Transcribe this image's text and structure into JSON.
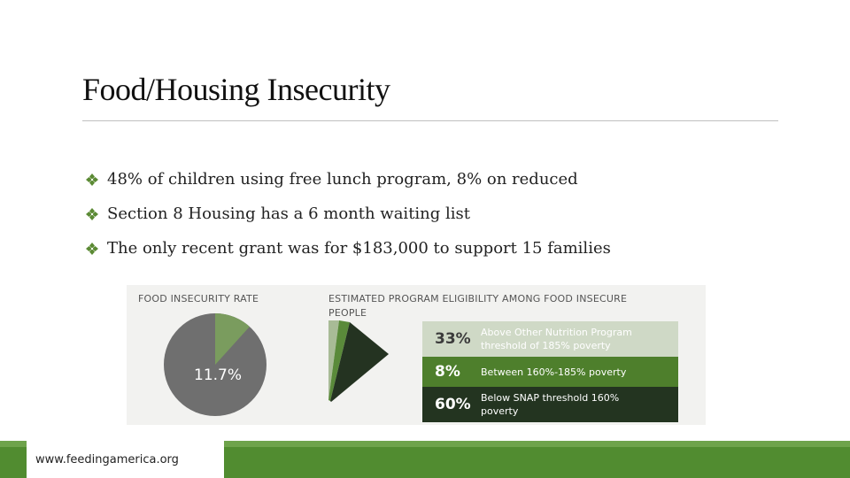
{
  "slide": {
    "title": "Food/Housing Insecurity",
    "bullets": [
      "48% of children using free lunch program, 8% on reduced",
      "Section 8 Housing has a 6 month waiting list",
      "The only recent grant was for $183,000 to support 15 families"
    ],
    "source": "www.feedingamerica.org"
  },
  "infographic": {
    "left_title": "FOOD INSECURITY RATE",
    "left_value": "11.7%",
    "left_fraction": 0.117,
    "right_title_line1": "ESTIMATED PROGRAM ELIGIBILITY AMONG FOOD INSECURE",
    "right_title_line2": "PEOPLE",
    "rows": [
      {
        "pct": "33%",
        "desc_line1": "Above Other Nutrition Program",
        "desc_line2": "threshold of 185% poverty",
        "bg": "#cfd9c6",
        "fg": "#3c3c3c",
        "desc_fg": "#ffffff"
      },
      {
        "pct": "8%",
        "desc_line1": "Between 160%-185% poverty",
        "desc_line2": "",
        "bg": "#4e7f2c",
        "fg": "#ffffff",
        "desc_fg": "#ffffff"
      },
      {
        "pct": "60%",
        "desc_line1": "Below SNAP threshold 160%",
        "desc_line2": "poverty",
        "bg": "#233420",
        "fg": "#ffffff",
        "desc_fg": "#ffffff"
      }
    ],
    "colors": {
      "pie_gray": "#6f6f6f",
      "pie_green": "#7a9c5e",
      "slice_light": "#a8bb96",
      "slice_mid": "#5a8a3a",
      "slice_dark": "#243321"
    }
  }
}
